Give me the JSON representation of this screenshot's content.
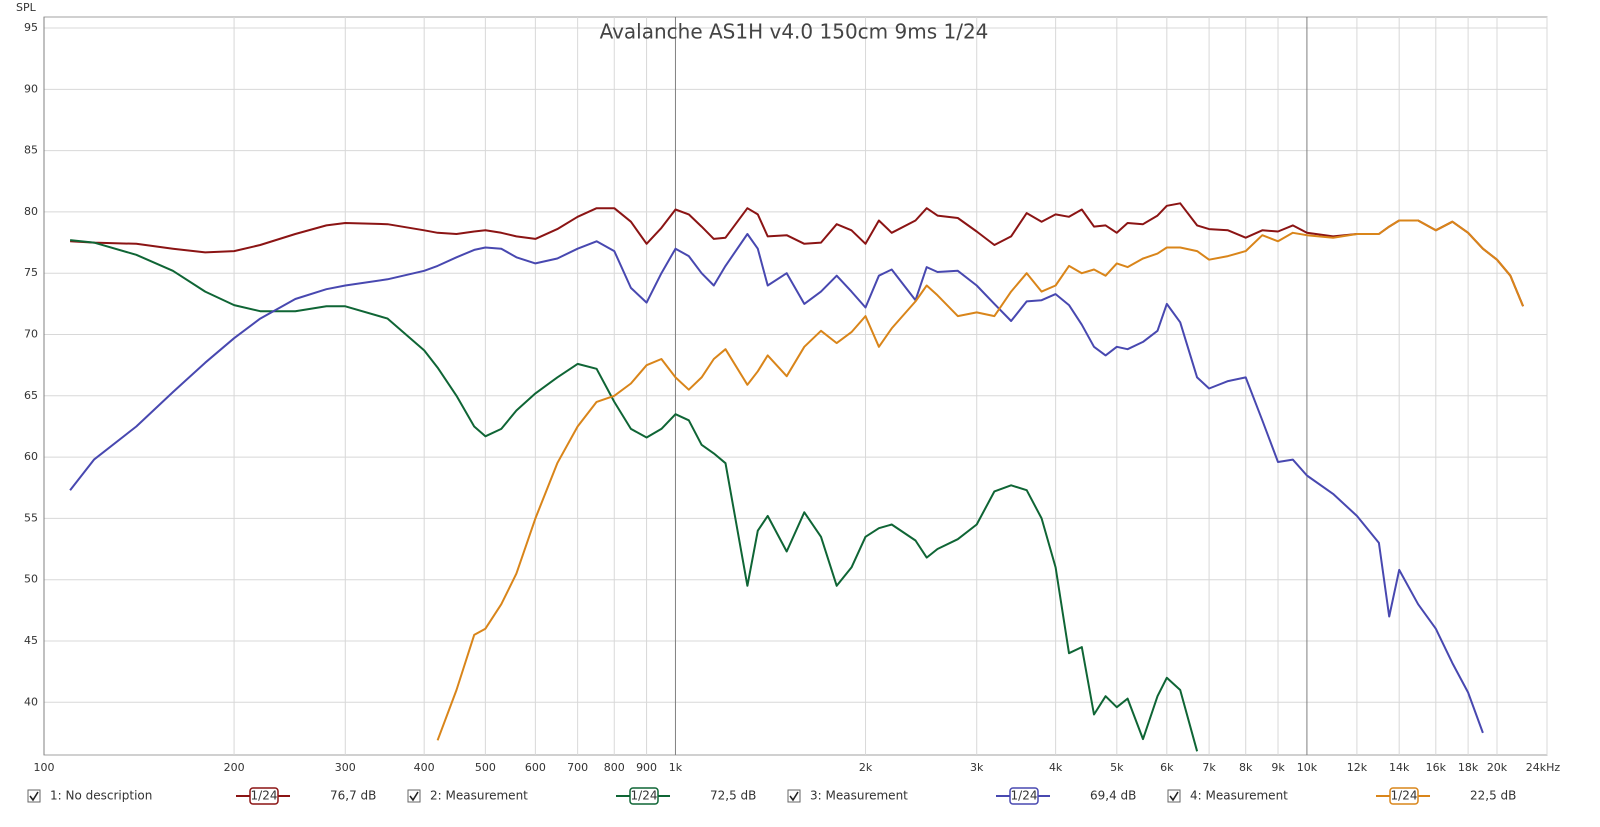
{
  "chart_data": {
    "type": "line",
    "title": "Avalanche AS1H v4.0 150cm 9ms 1/24",
    "y_label": "SPL",
    "log_x": true,
    "grid": true,
    "smoothing": "1/24",
    "xlim": [
      100,
      24000
    ],
    "ylim": [
      35.7,
      95.9
    ],
    "xticks": [
      100,
      200,
      300,
      400,
      500,
      600,
      700,
      800,
      900,
      {
        "value": 1000,
        "label": "1k"
      },
      {
        "value": 2000,
        "label": "2k"
      },
      {
        "value": 3000,
        "label": "3k"
      },
      {
        "value": 4000,
        "label": "4k"
      },
      {
        "value": 5000,
        "label": "5k"
      },
      {
        "value": 6000,
        "label": "6k"
      },
      {
        "value": 7000,
        "label": "7k"
      },
      {
        "value": 8000,
        "label": "8k"
      },
      {
        "value": 9000,
        "label": "9k"
      },
      {
        "value": 10000,
        "label": "10k"
      },
      {
        "value": 12000,
        "label": "12k"
      },
      {
        "value": 14000,
        "label": "14k"
      },
      {
        "value": 16000,
        "label": "16k"
      },
      {
        "value": 18000,
        "label": "18k"
      },
      {
        "value": 20000,
        "label": "20k"
      },
      {
        "value": 24000,
        "label": "24kHz"
      }
    ],
    "yticks": [
      40,
      45,
      50,
      55,
      60,
      65,
      70,
      75,
      80,
      85,
      90,
      95
    ],
    "x": [
      110,
      120,
      140,
      160,
      180,
      200,
      220,
      250,
      280,
      300,
      350,
      400,
      420,
      450,
      480,
      500,
      530,
      560,
      600,
      650,
      700,
      750,
      800,
      850,
      900,
      950,
      1000,
      1050,
      1100,
      1150,
      1200,
      1300,
      1350,
      1400,
      1500,
      1600,
      1700,
      1800,
      1900,
      2000,
      2100,
      2200,
      2400,
      2500,
      2600,
      2800,
      3000,
      3200,
      3400,
      3600,
      3800,
      4000,
      4200,
      4400,
      4600,
      4800,
      5000,
      5200,
      5500,
      5800,
      6000,
      6300,
      6700,
      7000,
      7500,
      8000,
      8500,
      9000,
      9500,
      10000,
      11000,
      12000,
      13000,
      13500,
      14000,
      15000,
      16000,
      17000,
      18000,
      19000,
      20000,
      21000,
      22000
    ],
    "series": [
      {
        "name": "1: No description",
        "color": "#8b1414",
        "legend_value": "76,7 dB",
        "values": [
          77.6,
          77.5,
          77.4,
          77.0,
          76.7,
          76.8,
          77.3,
          78.2,
          78.9,
          79.1,
          79.0,
          78.5,
          78.3,
          78.2,
          78.4,
          78.5,
          78.3,
          78.0,
          77.8,
          78.6,
          79.6,
          80.3,
          80.3,
          79.2,
          77.4,
          78.7,
          80.2,
          79.8,
          78.8,
          77.8,
          77.9,
          80.3,
          79.8,
          78.0,
          78.1,
          77.4,
          77.5,
          79.0,
          78.5,
          77.4,
          79.3,
          78.3,
          79.3,
          80.3,
          79.7,
          79.5,
          78.4,
          77.3,
          78.0,
          79.9,
          79.2,
          79.8,
          79.6,
          80.2,
          78.8,
          78.9,
          78.3,
          79.1,
          79.0,
          79.7,
          80.5,
          80.7,
          78.9,
          78.6,
          78.5,
          77.9,
          78.5,
          78.4,
          78.9,
          78.3,
          78.0,
          78.2,
          78.2,
          78.8,
          79.3,
          79.3,
          78.5,
          79.2,
          78.3,
          77.0,
          76.1,
          74.8,
          72.3
        ]
      },
      {
        "name": "2: Measurement",
        "color": "#0f6535",
        "legend_value": "72,5 dB",
        "values": [
          77.7,
          77.5,
          76.5,
          75.2,
          73.5,
          72.4,
          71.9,
          71.9,
          72.3,
          72.3,
          71.3,
          68.7,
          67.3,
          65.0,
          62.5,
          61.7,
          62.3,
          63.8,
          65.2,
          66.5,
          67.6,
          67.2,
          64.5,
          62.3,
          61.6,
          62.3,
          63.5,
          63.0,
          61.0,
          60.3,
          59.5,
          49.5,
          54.0,
          55.2,
          52.3,
          55.5,
          53.5,
          49.5,
          51.0,
          53.5,
          54.2,
          54.5,
          53.2,
          51.8,
          52.5,
          53.3,
          54.5,
          57.2,
          57.7,
          57.3,
          55.0,
          51.0,
          44.0,
          44.5,
          39.0,
          40.5,
          39.6,
          40.3,
          37.0,
          40.5,
          42.0,
          41.0,
          36.0,
          null,
          null,
          null,
          null,
          null,
          null,
          null,
          null,
          null,
          null,
          null,
          null,
          null,
          null,
          null,
          null,
          null,
          null,
          null,
          null
        ]
      },
      {
        "name": "3: Measurement",
        "color": "#4848b0",
        "legend_value": "69,4 dB",
        "values": [
          57.3,
          59.8,
          62.5,
          65.3,
          67.7,
          69.7,
          71.3,
          72.9,
          73.7,
          74.0,
          74.5,
          75.2,
          75.6,
          76.3,
          76.9,
          77.1,
          77.0,
          76.3,
          75.8,
          76.2,
          77.0,
          77.6,
          76.8,
          73.8,
          72.6,
          75.0,
          77.0,
          76.4,
          75.0,
          74.0,
          75.6,
          78.2,
          77.0,
          74.0,
          75.0,
          72.5,
          73.5,
          74.8,
          73.5,
          72.2,
          74.8,
          75.3,
          72.8,
          75.5,
          75.1,
          75.2,
          74.0,
          72.5,
          71.1,
          72.7,
          72.8,
          73.3,
          72.4,
          70.8,
          69.0,
          68.3,
          69.0,
          68.8,
          69.4,
          70.3,
          72.5,
          71.0,
          66.5,
          65.6,
          66.2,
          66.5,
          63.0,
          59.6,
          59.8,
          58.5,
          57.0,
          55.2,
          53.0,
          47.0,
          50.8,
          48.0,
          46.0,
          43.2,
          40.8,
          37.5,
          null,
          null,
          null
        ]
      },
      {
        "name": "4: Measurement",
        "color": "#d9851a",
        "legend_value": "22,5 dB",
        "values": [
          null,
          null,
          null,
          null,
          null,
          null,
          null,
          null,
          null,
          null,
          null,
          null,
          36.9,
          41.0,
          45.5,
          46.0,
          48.0,
          50.5,
          55.0,
          59.5,
          62.5,
          64.5,
          65.0,
          66.0,
          67.5,
          68.0,
          66.5,
          65.5,
          66.5,
          68.0,
          68.8,
          65.9,
          67.0,
          68.3,
          66.6,
          69.0,
          70.3,
          69.3,
          70.2,
          71.5,
          69.0,
          70.5,
          72.7,
          74.0,
          73.2,
          71.5,
          71.8,
          71.5,
          73.5,
          75.0,
          73.5,
          74.0,
          75.6,
          75.0,
          75.3,
          74.8,
          75.8,
          75.5,
          76.2,
          76.6,
          77.1,
          77.1,
          76.8,
          76.1,
          76.4,
          76.8,
          78.1,
          77.6,
          78.3,
          78.1,
          77.9,
          78.2,
          78.2,
          78.8,
          79.3,
          79.3,
          78.5,
          79.2,
          78.3,
          77.0,
          76.1,
          74.8,
          72.3
        ]
      }
    ]
  }
}
